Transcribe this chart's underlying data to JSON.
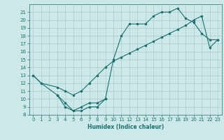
{
  "xlabel": "Humidex (Indice chaleur)",
  "xlim": [
    -0.5,
    23.5
  ],
  "ylim": [
    8,
    22
  ],
  "xticks": [
    0,
    1,
    2,
    3,
    4,
    5,
    6,
    7,
    8,
    9,
    10,
    11,
    12,
    13,
    14,
    15,
    16,
    17,
    18,
    19,
    20,
    21,
    22,
    23
  ],
  "yticks": [
    8,
    9,
    10,
    11,
    12,
    13,
    14,
    15,
    16,
    17,
    18,
    19,
    20,
    21
  ],
  "bg_color": "#cce8e8",
  "grid_color": "#aacccc",
  "line_color": "#1a7070",
  "line1_x": [
    0,
    1,
    3,
    4,
    5,
    6,
    7,
    8,
    9,
    10,
    11,
    12,
    13,
    14,
    15,
    16,
    17,
    18,
    19,
    20,
    21,
    22,
    23
  ],
  "line1_y": [
    13,
    12,
    10.5,
    9.5,
    8.5,
    8.5,
    9.0,
    9.0,
    10.0,
    15.0,
    18.0,
    19.5,
    19.5,
    19.5,
    20.5,
    21.0,
    21.0,
    21.5,
    20.2,
    19.7,
    18.3,
    17.5,
    17.5
  ],
  "line2_x": [
    0,
    1,
    3,
    4,
    5,
    6,
    7,
    8,
    9,
    10,
    11,
    12,
    13,
    14,
    15,
    16,
    17,
    18,
    19,
    20,
    21,
    22,
    23
  ],
  "line2_y": [
    13,
    12,
    11.5,
    11.0,
    10.5,
    11.0,
    12.0,
    13.0,
    14.0,
    14.8,
    15.3,
    15.8,
    16.3,
    16.8,
    17.3,
    17.8,
    18.3,
    18.8,
    19.3,
    20.0,
    20.5,
    16.5,
    17.5
  ],
  "line3_x": [
    3,
    4,
    5,
    6,
    7,
    8,
    9
  ],
  "line3_y": [
    10.5,
    9.0,
    8.5,
    9.0,
    9.5,
    9.5,
    10.0
  ]
}
